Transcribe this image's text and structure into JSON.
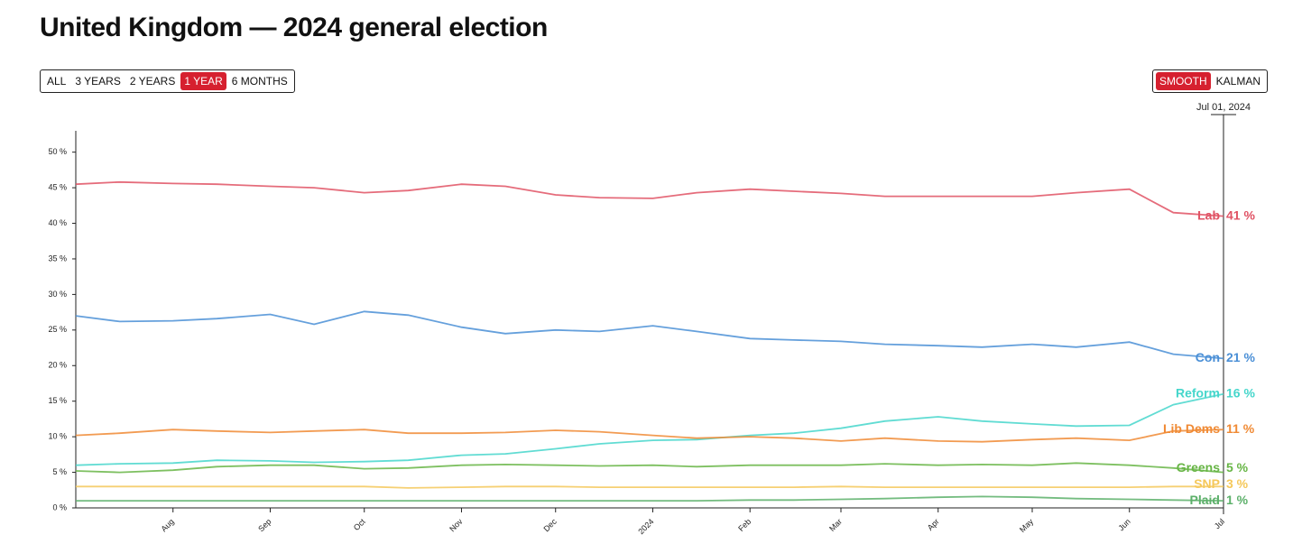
{
  "chart_data": {
    "type": "line",
    "title": "United Kingdom — 2024 general election",
    "ranges": [
      "ALL",
      "3 YEARS",
      "2 YEARS",
      "1 YEAR",
      "6 MONTHS"
    ],
    "active_range": 3,
    "methods": [
      "SMOOTH",
      "KALMAN"
    ],
    "active_method": 0,
    "cursor_label": "Jul 01, 2024",
    "x": [
      "2023-07-01",
      "2023-07-15",
      "2023-08-01",
      "2023-08-15",
      "2023-09-01",
      "2023-09-15",
      "2023-10-01",
      "2023-10-15",
      "2023-11-01",
      "2023-11-15",
      "2023-12-01",
      "2023-12-15",
      "2024-01-01",
      "2024-01-15",
      "2024-02-01",
      "2024-02-15",
      "2024-03-01",
      "2024-03-15",
      "2024-04-01",
      "2024-04-15",
      "2024-05-01",
      "2024-05-15",
      "2024-06-01",
      "2024-06-15",
      "2024-07-01"
    ],
    "xlim": [
      "2023-07-01",
      "2024-07-01"
    ],
    "xticks": [
      {
        "value": "2023-08-01",
        "label": "Aug"
      },
      {
        "value": "2023-09-01",
        "label": "Sep"
      },
      {
        "value": "2023-10-01",
        "label": "Oct"
      },
      {
        "value": "2023-11-01",
        "label": "Nov"
      },
      {
        "value": "2023-12-01",
        "label": "Dec"
      },
      {
        "value": "2024-01-01",
        "label": "2024"
      },
      {
        "value": "2024-02-01",
        "label": "Feb"
      },
      {
        "value": "2024-03-01",
        "label": "Mar"
      },
      {
        "value": "2024-04-01",
        "label": "Apr"
      },
      {
        "value": "2024-05-01",
        "label": "May"
      },
      {
        "value": "2024-06-01",
        "label": "Jun"
      },
      {
        "value": "2024-07-01",
        "label": "Jul"
      }
    ],
    "ylim": [
      0,
      53
    ],
    "yticks": [
      {
        "value": 0,
        "label": "0 %"
      },
      {
        "value": 5,
        "label": "5 %"
      },
      {
        "value": 10,
        "label": "10 %"
      },
      {
        "value": 15,
        "label": "15 %"
      },
      {
        "value": 20,
        "label": "20 %"
      },
      {
        "value": 25,
        "label": "25 %"
      },
      {
        "value": 30,
        "label": "30 %"
      },
      {
        "value": 35,
        "label": "35 %"
      },
      {
        "value": 40,
        "label": "40 %"
      },
      {
        "value": 45,
        "label": "45 %"
      },
      {
        "value": 50,
        "label": "50 %"
      }
    ],
    "series": [
      {
        "name": "Lab",
        "color": "#e05264",
        "values": [
          45.5,
          45.8,
          45.6,
          45.5,
          45.2,
          45.0,
          44.3,
          44.6,
          45.5,
          45.2,
          44.0,
          43.6,
          43.5,
          44.3,
          44.8,
          44.5,
          44.2,
          43.8,
          43.8,
          43.8,
          43.8,
          44.3,
          44.8,
          41.5,
          41
        ],
        "current": {
          "value": 41,
          "label": "41 %"
        }
      },
      {
        "name": "Con",
        "color": "#4a8fd6",
        "values": [
          27,
          26.2,
          26.3,
          26.6,
          27.2,
          25.8,
          27.6,
          27.1,
          25.4,
          24.5,
          25.0,
          24.8,
          25.6,
          24.8,
          23.8,
          23.6,
          23.4,
          23.0,
          22.8,
          22.6,
          23.0,
          22.6,
          23.3,
          21.6,
          21
        ],
        "current": {
          "value": 21,
          "label": "21 %"
        }
      },
      {
        "name": "Reform",
        "color": "#45d6cb",
        "values": [
          6.0,
          6.2,
          6.3,
          6.7,
          6.6,
          6.4,
          6.5,
          6.7,
          7.4,
          7.6,
          8.3,
          9.0,
          9.5,
          9.6,
          10.2,
          10.5,
          11.2,
          12.2,
          12.8,
          12.2,
          11.8,
          11.5,
          11.6,
          14.5,
          16
        ],
        "current": {
          "value": 16,
          "label": "16 %"
        }
      },
      {
        "name": "Lib Dems",
        "color": "#f08a34",
        "values": [
          10.2,
          10.5,
          11.0,
          10.8,
          10.6,
          10.8,
          11.0,
          10.5,
          10.5,
          10.6,
          10.9,
          10.7,
          10.2,
          9.8,
          10.0,
          9.8,
          9.4,
          9.8,
          9.4,
          9.3,
          9.6,
          9.8,
          9.5,
          10.8,
          11
        ],
        "current": {
          "value": 11,
          "label": "11 %"
        }
      },
      {
        "name": "Greens",
        "color": "#67b545",
        "values": [
          5.2,
          5.0,
          5.3,
          5.8,
          6.0,
          6.0,
          5.5,
          5.6,
          6.0,
          6.1,
          6.0,
          5.9,
          6.0,
          5.8,
          6.0,
          6.0,
          6.0,
          6.2,
          6.0,
          6.1,
          6.0,
          6.3,
          6.0,
          5.6,
          5
        ],
        "current": {
          "value": 5,
          "label": "5 %"
        }
      },
      {
        "name": "SNP",
        "color": "#f5c85a",
        "values": [
          3.0,
          3.0,
          3.0,
          3.0,
          3.0,
          3.0,
          3.0,
          2.8,
          2.9,
          3.0,
          3.0,
          2.9,
          2.9,
          2.9,
          2.9,
          2.9,
          3.0,
          2.9,
          2.9,
          2.9,
          2.9,
          2.9,
          2.9,
          3.0,
          3
        ],
        "current": {
          "value": 3,
          "label": "3 %"
        }
      },
      {
        "name": "Plaid",
        "color": "#5cb06a",
        "values": [
          1,
          1,
          1,
          1,
          1,
          1,
          1,
          1,
          1,
          1,
          1,
          1,
          1,
          1,
          1.1,
          1.1,
          1.2,
          1.3,
          1.5,
          1.6,
          1.5,
          1.3,
          1.2,
          1.1,
          1
        ],
        "current": {
          "value": 1,
          "label": "1 %"
        }
      }
    ]
  }
}
